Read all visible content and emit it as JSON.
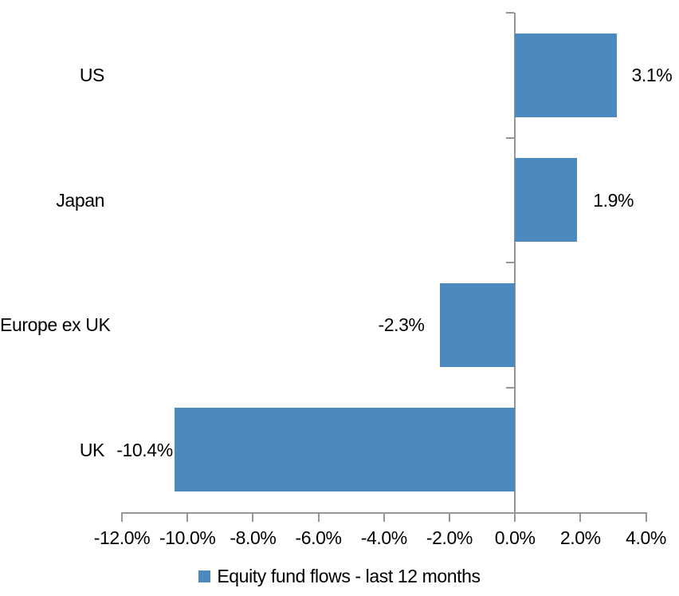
{
  "chart_data": {
    "type": "bar",
    "orientation": "horizontal",
    "title": "",
    "categories": [
      "US",
      "Japan",
      "Europe ex UK",
      "UK"
    ],
    "values": [
      3.1,
      1.9,
      -2.3,
      -10.4
    ],
    "data_labels": [
      "3.1%",
      "1.9%",
      "-2.3%",
      "-10.4%"
    ],
    "series": [
      {
        "name": "Equity fund flows - last 12 months",
        "values": [
          3.1,
          1.9,
          -2.3,
          -10.4
        ]
      }
    ],
    "xlabel": "",
    "ylabel": "",
    "xlim": [
      -12,
      4
    ],
    "x_tick_step": 2,
    "x_tick_labels": [
      "-12.0%",
      "-10.0%",
      "-8.0%",
      "-6.0%",
      "-4.0%",
      "-2.0%",
      "0.0%",
      "2.0%",
      "4.0%"
    ],
    "grid": false,
    "data_label_position": "outside-end",
    "legend": {
      "position": "bottom",
      "label": "Equity fund flows - last 12 months"
    },
    "colors": {
      "bar": "#4C89BE",
      "axis": "#969696",
      "text": "#000000",
      "background": "#FFFFFF"
    }
  }
}
